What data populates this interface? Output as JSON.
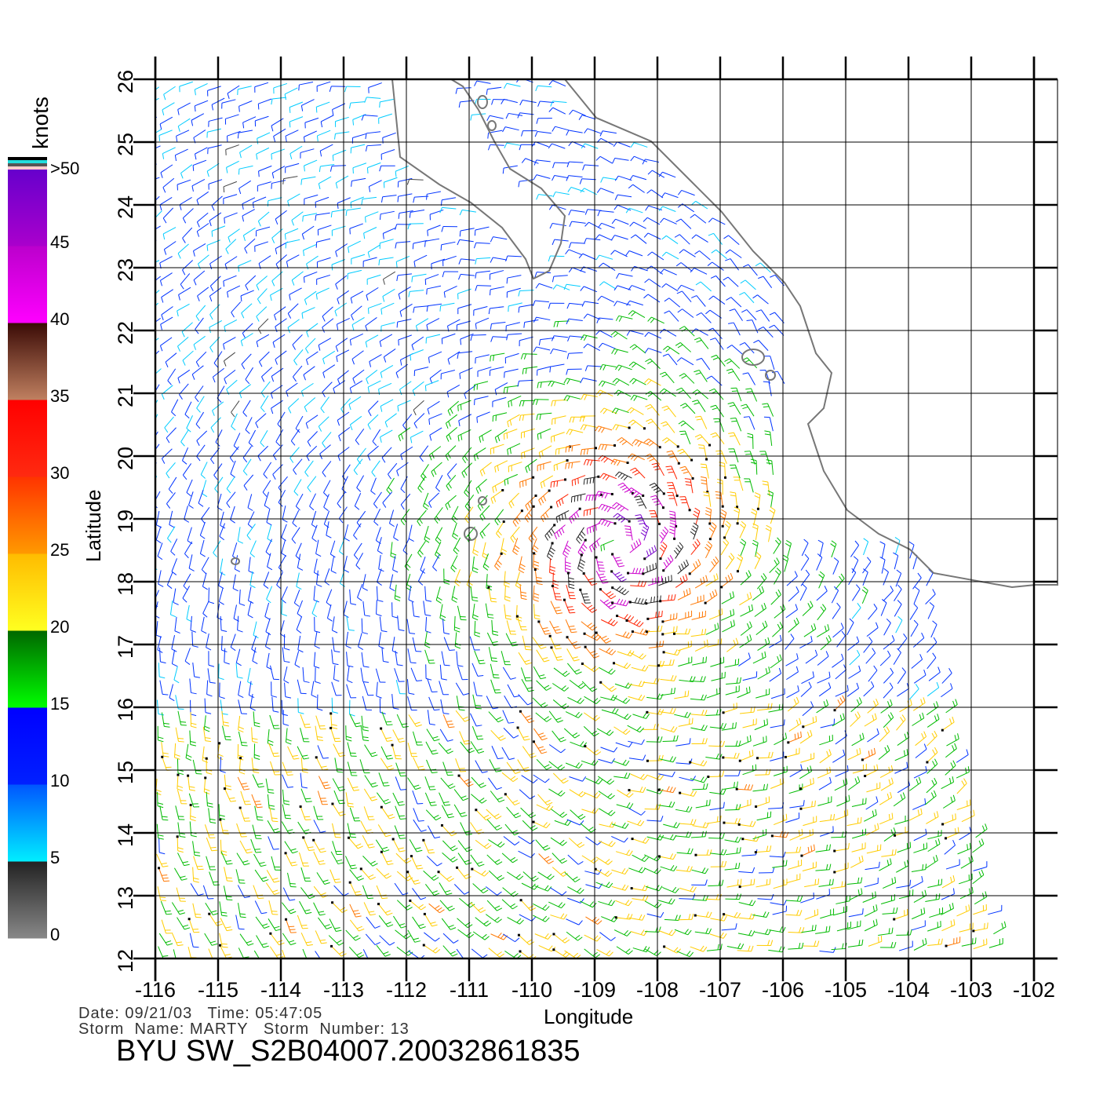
{
  "chart_data": {
    "type": "wind_barbs",
    "title": "BYU SW_S2B04007.20032861835",
    "xlabel": "Longitude",
    "ylabel": "Latitude",
    "xlim": [
      -116,
      -102
    ],
    "ylim": [
      12,
      26
    ],
    "xticks": [
      "-116",
      "-115",
      "-114",
      "-113",
      "-112",
      "-111",
      "-110",
      "-109",
      "-108",
      "-107",
      "-106",
      "-105",
      "-104",
      "-103",
      "-102"
    ],
    "yticks": [
      "12",
      "13",
      "14",
      "15",
      "16",
      "17",
      "18",
      "19",
      "20",
      "21",
      "22",
      "23",
      "24",
      "25",
      "26"
    ],
    "grid": true,
    "colorbar": {
      "unit_label": "knots",
      "tick_labels": [
        "0",
        "5",
        "10",
        "15",
        "20",
        "25",
        "30",
        "35",
        "40",
        "45",
        ">50"
      ],
      "bins": [
        {
          "min": 0,
          "max": 5,
          "color": "#555555"
        },
        {
          "min": 5,
          "max": 10,
          "color": "#00aaff"
        },
        {
          "min": 10,
          "max": 15,
          "color": "#0022ff"
        },
        {
          "min": 15,
          "max": 20,
          "color": "#00bb00"
        },
        {
          "min": 20,
          "max": 25,
          "color": "#ffcc00"
        },
        {
          "min": 25,
          "max": 30,
          "color": "#ff6600"
        },
        {
          "min": 30,
          "max": 35,
          "color": "#ff1a00"
        },
        {
          "min": 35,
          "max": 40,
          "color": "#7a3a22"
        },
        {
          "min": 40,
          "max": 45,
          "color": "#ee00ee"
        },
        {
          "min": 45,
          "max": 50,
          "color": "#8800cc"
        }
      ]
    },
    "storm_center_approx": {
      "lon": -108.6,
      "lat": 18.6,
      "max_wind_knots": 45
    }
  },
  "info": {
    "date_line": "Date: 09/21/03   Time: 05:47:05",
    "storm_line": "Storm  Name: MARTY   Storm  Number: 13"
  }
}
